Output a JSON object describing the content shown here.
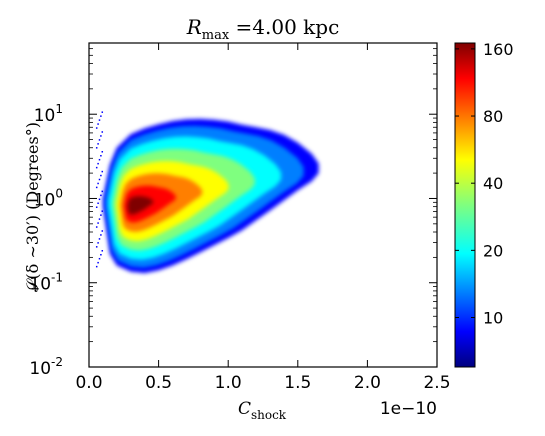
{
  "chart_data": {
    "type": "heatmap",
    "title": {
      "var": "R",
      "sub": "max",
      "rest": " =4.00 kpc"
    },
    "xlabel": {
      "var": "C",
      "sub": "shock"
    },
    "ylabel": "𝒮(δ ∼30′) (Degrees°)",
    "x_offset_label": "1e−10",
    "xlim": [
      0.0,
      2.5
    ],
    "x_scale_factor": 1e-10,
    "x_ticks": [
      {
        "value": 0.0,
        "label": "0.0"
      },
      {
        "value": 0.5,
        "label": "0.5"
      },
      {
        "value": 1.0,
        "label": "1.0"
      },
      {
        "value": 1.5,
        "label": "1.5"
      },
      {
        "value": 2.0,
        "label": "2.0"
      },
      {
        "value": 2.5,
        "label": "2.5"
      }
    ],
    "y_scale": "log",
    "ylim": [
      0.01,
      70
    ],
    "y_ticks": [
      {
        "value": 0.01,
        "base": "10",
        "exp": "-2"
      },
      {
        "value": 0.1,
        "base": "10",
        "exp": "-1"
      },
      {
        "value": 1,
        "base": "10",
        "exp": "0"
      },
      {
        "value": 10,
        "base": "10",
        "exp": "1"
      }
    ],
    "colorbar": {
      "colormap": "jet",
      "range": [
        6,
        170
      ],
      "ticks": [
        {
          "value": 10,
          "label": "10"
        },
        {
          "value": 20,
          "label": "20"
        },
        {
          "value": 40,
          "label": "40"
        },
        {
          "value": 80,
          "label": "80"
        },
        {
          "value": 160,
          "label": "160"
        }
      ]
    },
    "density_peak": {
      "x": 0.3,
      "y": 0.8,
      "count": 165
    },
    "envelope": {
      "x": [
        0.1,
        0.15,
        0.2,
        0.3,
        0.4,
        0.5,
        0.6,
        0.7,
        0.8,
        0.9,
        1.0,
        1.1,
        1.2,
        1.3,
        1.4,
        1.5,
        1.6,
        1.65
      ],
      "y_upper": [
        1.0,
        2.5,
        4.0,
        5.8,
        6.8,
        7.6,
        8.3,
        8.7,
        8.8,
        8.6,
        8.2,
        7.5,
        7.0,
        6.5,
        5.7,
        4.6,
        3.4,
        2.6
      ],
      "y_lower": [
        0.8,
        0.22,
        0.16,
        0.135,
        0.13,
        0.14,
        0.16,
        0.19,
        0.23,
        0.28,
        0.34,
        0.42,
        0.55,
        0.72,
        0.95,
        1.25,
        1.6,
        2.0
      ]
    },
    "colors": {
      "colormap_stops": [
        "#00007f",
        "#0000ff",
        "#007fff",
        "#00ffff",
        "#7fff7f",
        "#ffff00",
        "#ff7f00",
        "#ff0000",
        "#7f0000"
      ]
    }
  }
}
